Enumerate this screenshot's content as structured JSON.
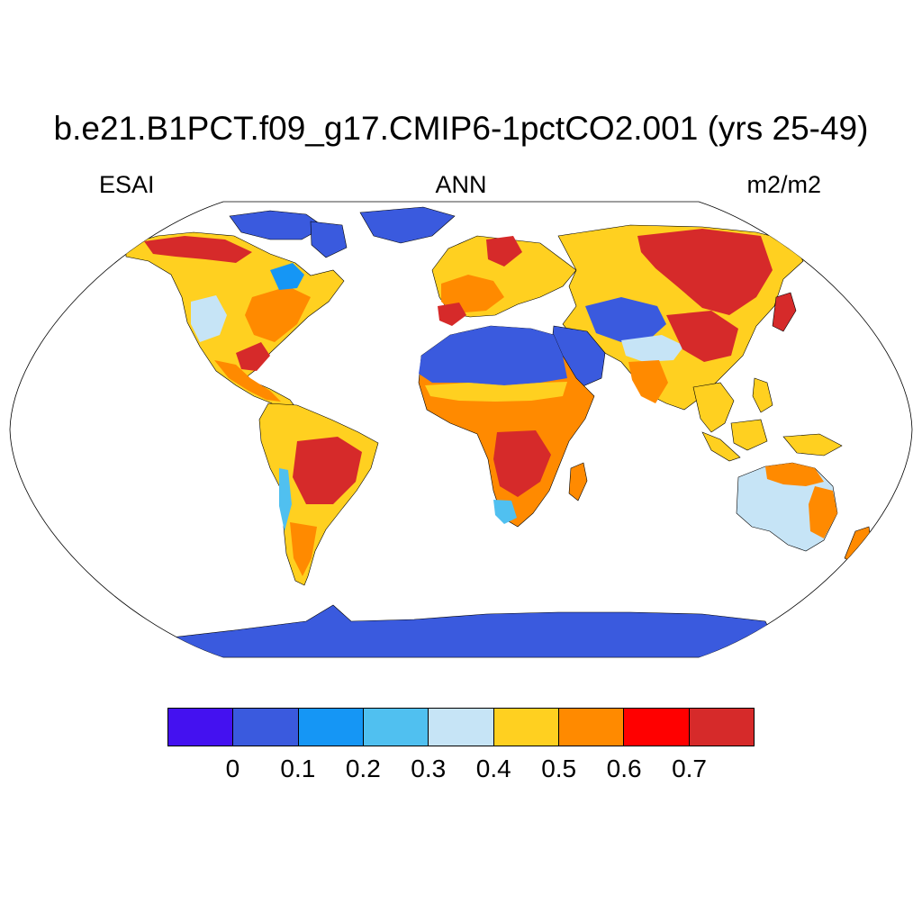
{
  "header": {
    "title": "b.e21.B1PCT.f09_g17.CMIP6-1pctCO2.001 (yrs 25-49)",
    "left": "ESAI",
    "center": "ANN",
    "right": "m2/m2"
  },
  "colorbar": {
    "colors": [
      "#4411f0",
      "#3a5ade",
      "#1596f5",
      "#50c0f0",
      "#c6e4f6",
      "#ffd020",
      "#ff8a00",
      "#ff0000",
      "#d62a2a"
    ],
    "ticks": [
      "0",
      "0.1",
      "0.2",
      "0.3",
      "0.4",
      "0.5",
      "0.6",
      "0.7"
    ]
  }
}
